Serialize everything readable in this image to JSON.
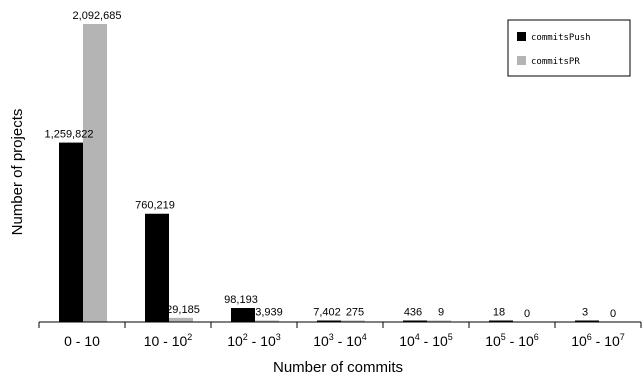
{
  "chart_data": {
    "type": "bar",
    "xlabel": "Number of commits",
    "ylabel": "Number of projects",
    "categories": [
      {
        "base": "0 - 10",
        "sup1": "",
        "mid": "",
        "sup2": ""
      },
      {
        "base": "10 - 10",
        "sup1": "2",
        "mid": "",
        "sup2": ""
      },
      {
        "base": "10",
        "sup1": "2",
        "mid": "- 10",
        "sup2": "3"
      },
      {
        "base": "10",
        "sup1": "3",
        "mid": "- 10",
        "sup2": "4"
      },
      {
        "base": "10",
        "sup1": "4",
        "mid": "- 10",
        "sup2": "5"
      },
      {
        "base": "10",
        "sup1": "5",
        "mid": "- 10",
        "sup2": "6"
      },
      {
        "base": "10",
        "sup1": "6",
        "mid": "- 10",
        "sup2": "7"
      }
    ],
    "series": [
      {
        "name": "commitsPush",
        "color": "#000000",
        "values": [
          1259822,
          760219,
          98193,
          7402,
          436,
          18,
          3
        ],
        "labels": [
          "1,259,822",
          "760,219",
          "98,193",
          "7,402",
          "436",
          "18",
          "3"
        ]
      },
      {
        "name": "commitsPR",
        "color": "#b4b4b4",
        "values": [
          2092685,
          29185,
          3939,
          275,
          9,
          0,
          0
        ],
        "labels": [
          "2,092,685",
          "29,185",
          "3,939",
          "275",
          "9",
          "0",
          "0"
        ]
      }
    ],
    "ylim": [
      0,
      2092685
    ],
    "legend": "top-right",
    "grid": false
  }
}
